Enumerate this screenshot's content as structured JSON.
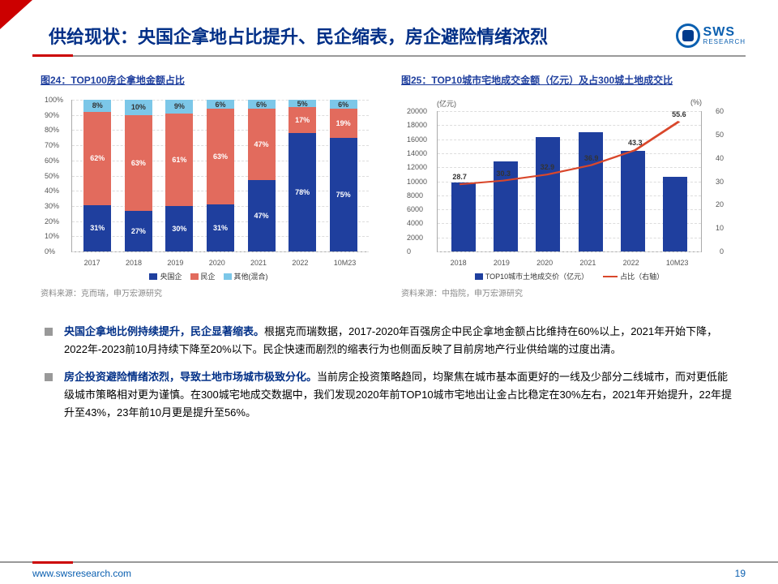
{
  "header": {
    "title": "供给现状：央国企拿地占比提升、民企缩表，房企避险情绪浓烈",
    "logo_main": "SWS",
    "logo_sub": "RESEARCH"
  },
  "chart24": {
    "title": "图24：TOP100房企拿地金额占比",
    "type": "stacked-bar",
    "ylim": [
      0,
      100
    ],
    "ytick_step": 10,
    "y_suffix": "%",
    "categories": [
      "2017",
      "2018",
      "2019",
      "2020",
      "2021",
      "2022",
      "10M23"
    ],
    "series": [
      {
        "name": "央国企",
        "color": "#1f3f9e",
        "values": [
          31,
          27,
          30,
          31,
          47,
          78,
          75
        ]
      },
      {
        "name": "民企",
        "color": "#e26b5d",
        "values": [
          62,
          63,
          61,
          63,
          47,
          17,
          19
        ]
      },
      {
        "name": "其他(混合)",
        "color": "#7cc7e8",
        "values": [
          8,
          10,
          9,
          6,
          6,
          5,
          6
        ],
        "text_color": "#333"
      }
    ],
    "source": "资料来源：克而瑞，申万宏源研究"
  },
  "chart25": {
    "title": "图25：TOP10城市宅地成交金额（亿元）及占300城土地成交比",
    "type": "bar-line",
    "unit_left": "(亿元)",
    "unit_right": "(%)",
    "yl_lim": [
      0,
      20000
    ],
    "yl_step": 2000,
    "yr_lim": [
      0,
      60
    ],
    "yr_step": 10,
    "categories": [
      "2018",
      "2019",
      "2020",
      "2021",
      "2022",
      "10M23"
    ],
    "bars": {
      "name": "TOP10城市土地成交价（亿元）",
      "color": "#1f3f9e",
      "values": [
        9800,
        12800,
        16300,
        17000,
        14300,
        10600
      ]
    },
    "line": {
      "name": "占比（右轴）",
      "color": "#d9472b",
      "values": [
        28.7,
        30.3,
        32.9,
        36.9,
        43.3,
        55.6
      ]
    },
    "source": "资料来源：中指院，申万宏源研究"
  },
  "bullets": [
    {
      "lead": "央国企拿地比例持续提升，民企显著缩表。",
      "rest": "根据克而瑞数据，2017-2020年百强房企中民企拿地金额占比维持在60%以上，2021年开始下降，2022年-2023前10月持续下降至20%以下。民企快速而剧烈的缩表行为也侧面反映了目前房地产行业供给端的过度出清。"
    },
    {
      "lead": "房企投资避险情绪浓烈，导致土地市场城市极致分化。",
      "rest": "当前房企投资策略趋同，均聚焦在城市基本面更好的一线及少部分二线城市，而对更低能级城市策略相对更为谨慎。在300城宅地成交数据中，我们发现2020年前TOP10城市宅地出让金占比稳定在30%左右，2021年开始提升，22年提升至43%，23年前10月更是提升至56%。"
    }
  ],
  "footer": {
    "url": "www.swsresearch.com",
    "page": "19"
  }
}
